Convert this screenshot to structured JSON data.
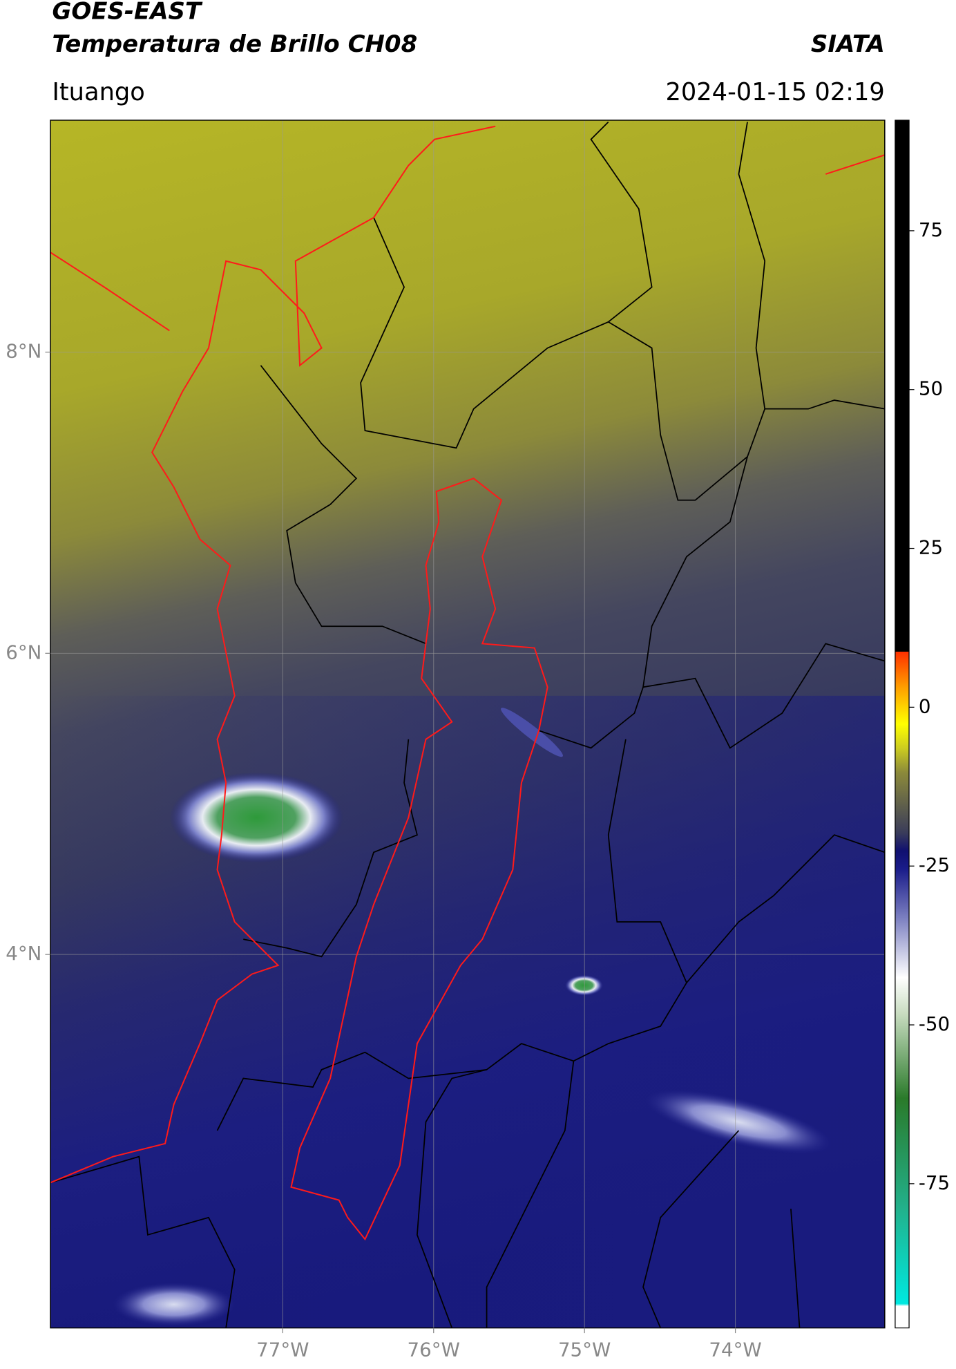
{
  "chart_data": {
    "type": "map",
    "title": "GOES-EAST",
    "subtitle": "Temperatura de Brillo CH08",
    "agency": "SIATA",
    "location": "Ituango",
    "datetime": "2024-01-15 02:19",
    "xlim": [
      -78.54,
      -73.01
    ],
    "ylim": [
      1.52,
      9.54
    ],
    "xticks": [
      {
        "value": -77,
        "label": "77°W"
      },
      {
        "value": -76,
        "label": "76°W"
      },
      {
        "value": -75,
        "label": "75°W"
      },
      {
        "value": -74,
        "label": "74°W"
      }
    ],
    "yticks": [
      {
        "value": 8,
        "label": "8°N"
      },
      {
        "value": 6,
        "label": "6°N"
      },
      {
        "value": 4,
        "label": "4°N"
      }
    ],
    "grid": true,
    "colorbar": {
      "lim": [
        -97.7,
        92.4
      ],
      "ticks": [
        75,
        50,
        25,
        0,
        -25,
        -50,
        -75
      ]
    }
  }
}
